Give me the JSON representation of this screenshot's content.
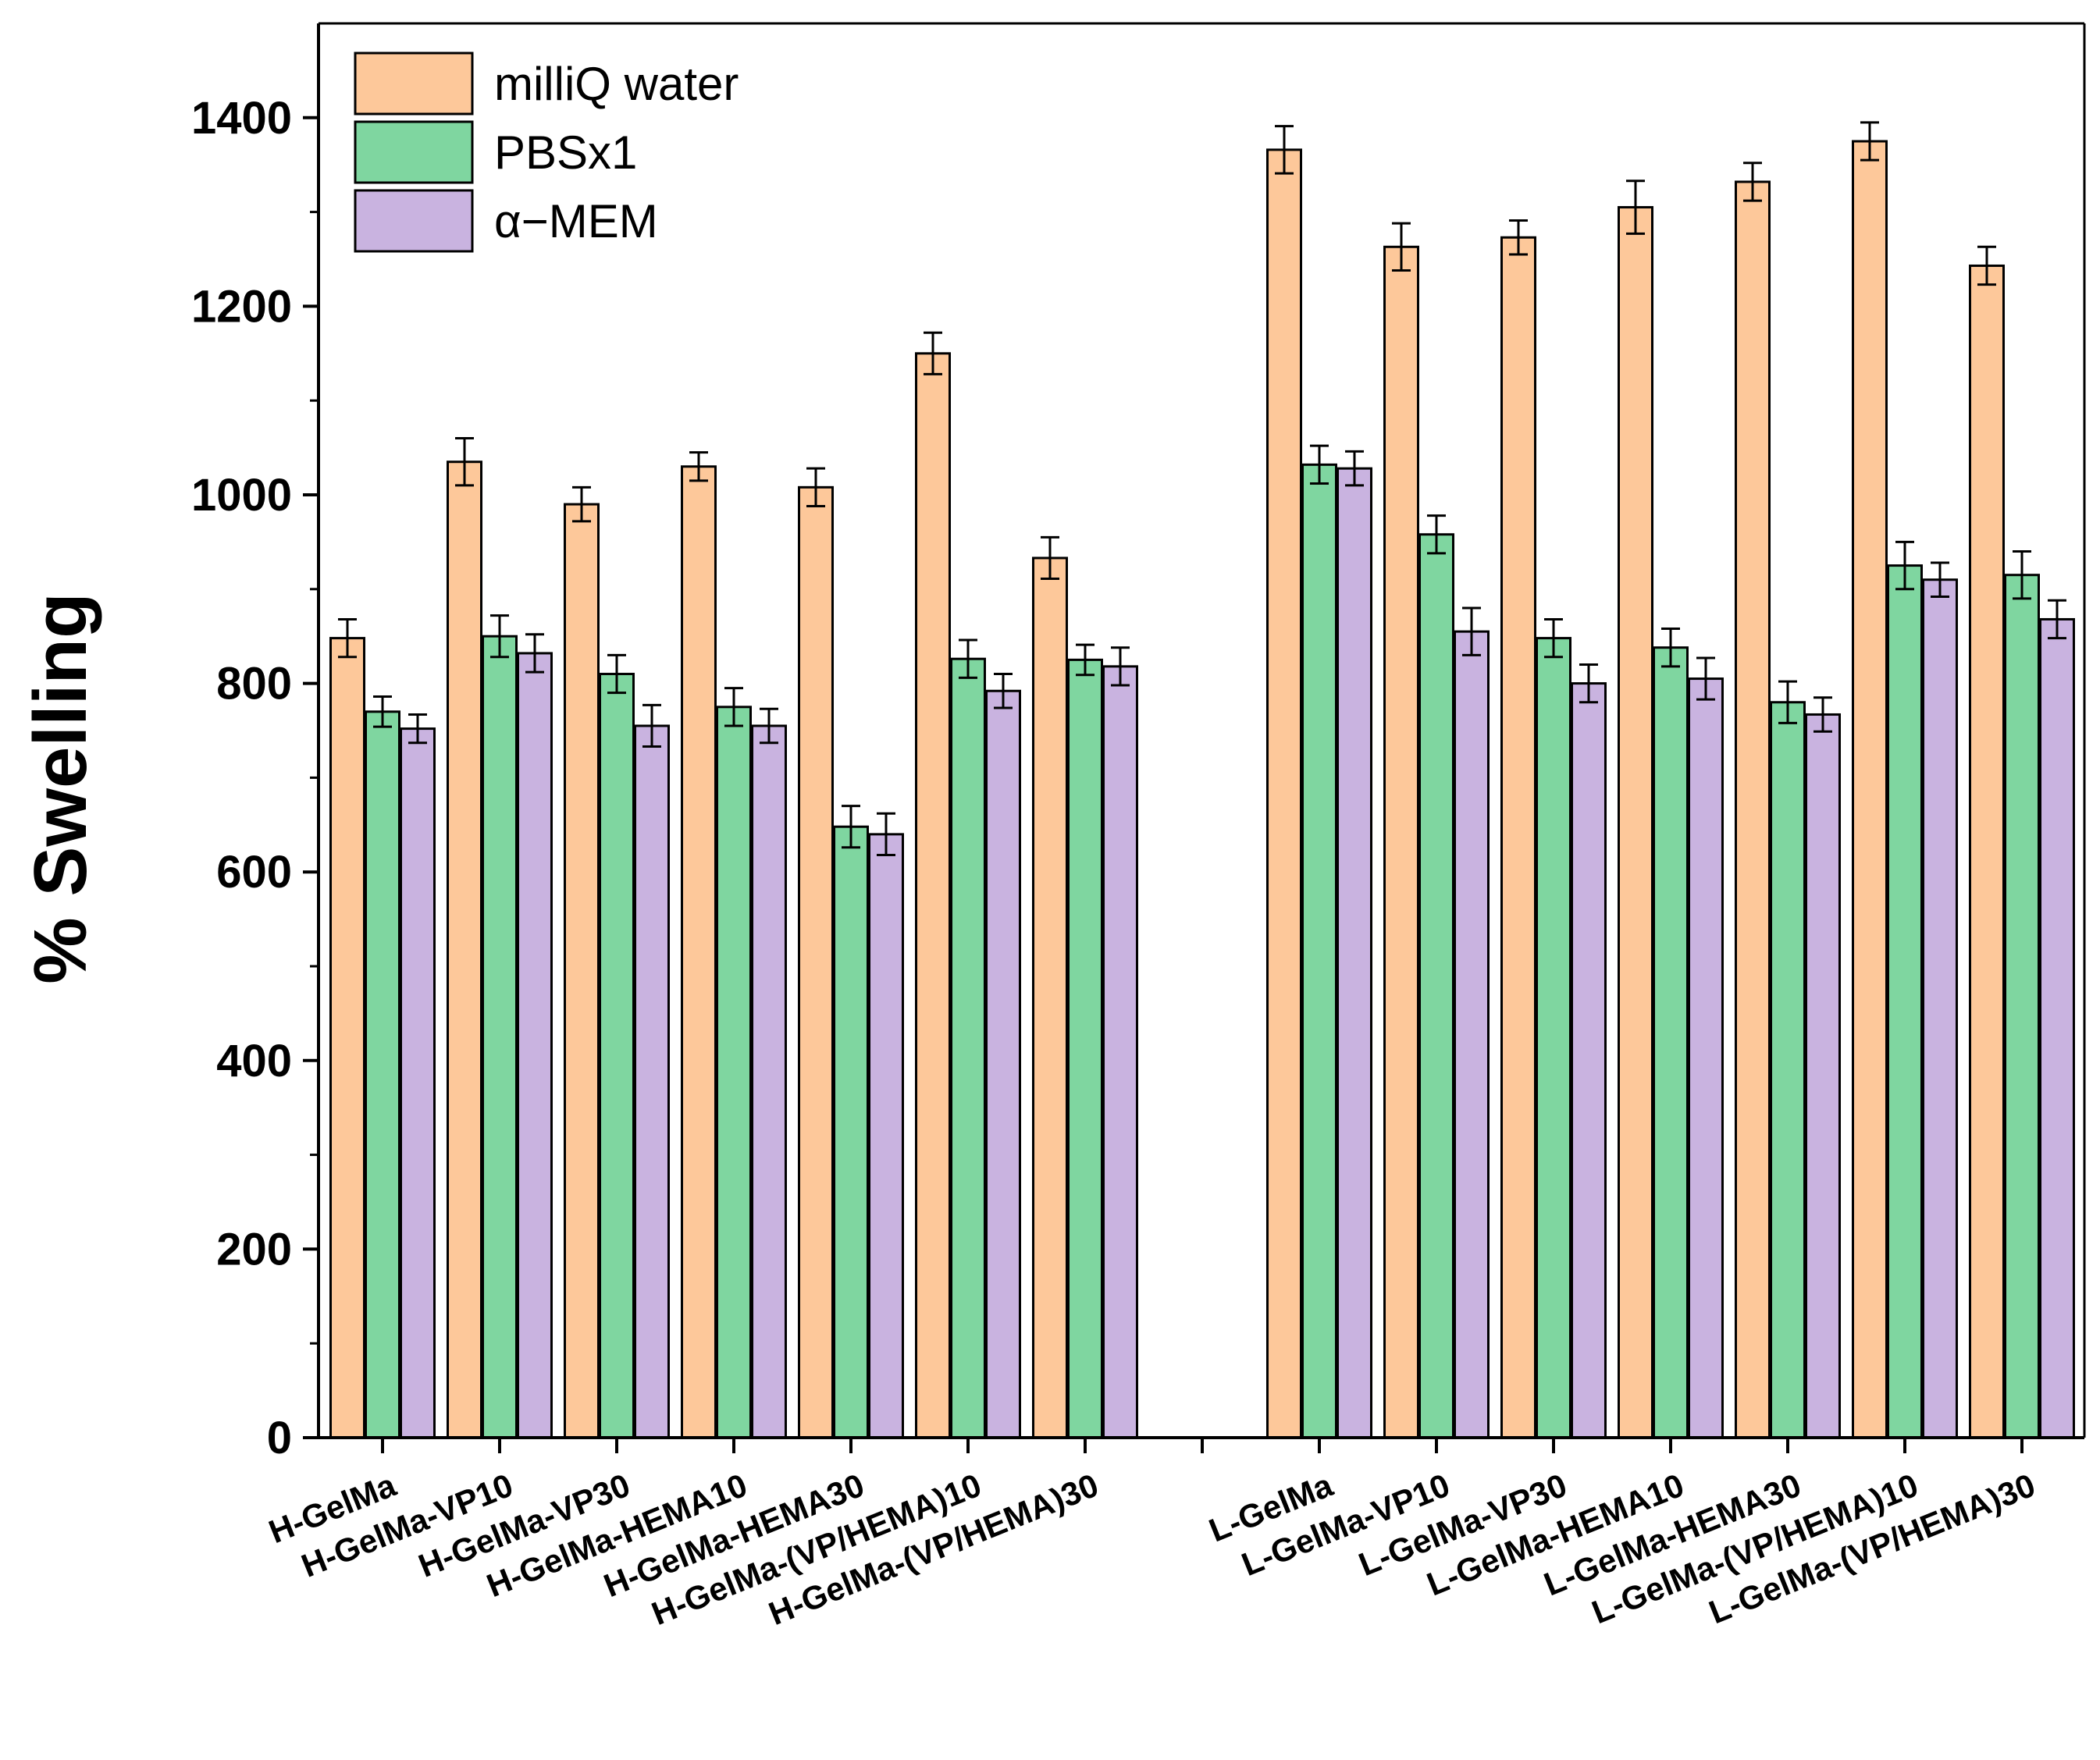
{
  "chart_data": {
    "type": "bar",
    "title": "",
    "xlabel": "",
    "ylabel": "% Swelling",
    "ylim": [
      0,
      1500
    ],
    "yticks": [
      0,
      200,
      400,
      600,
      800,
      1000,
      1200,
      1400
    ],
    "grid": false,
    "legend_position": "top-left",
    "groups": [
      {
        "categories": [
          "H-GelMa",
          "H-GelMa-VP10",
          "H-GelMa-VP30",
          "H-GelMa-HEMA10",
          "H-GelMa-HEMA30",
          "H-GelMa-(VP/HEMA)10",
          "H-GelMa-(VP/HEMA)30"
        ]
      },
      {
        "categories": [
          "L-GelMa",
          "L-GelMa-VP10",
          "L-GelMa-VP30",
          "L-GelMa-HEMA10",
          "L-GelMa-HEMA30",
          "L-GelMa-(VP/HEMA)10",
          "L-GelMa-(VP/HEMA)30"
        ]
      }
    ],
    "series": [
      {
        "name": "milliQ water",
        "color": "#fdc89a",
        "values": [
          848,
          1035,
          990,
          1030,
          1008,
          1150,
          933,
          1366,
          1263,
          1273,
          1305,
          1332,
          1375,
          1243
        ],
        "errors": [
          20,
          25,
          18,
          15,
          20,
          22,
          22,
          25,
          25,
          18,
          28,
          20,
          20,
          20
        ]
      },
      {
        "name": "PBSx1",
        "color": "#7fd6a0",
        "values": [
          770,
          850,
          810,
          775,
          648,
          826,
          825,
          1032,
          958,
          848,
          838,
          780,
          925,
          915
        ],
        "errors": [
          16,
          22,
          20,
          20,
          22,
          20,
          16,
          20,
          20,
          20,
          20,
          22,
          25,
          25
        ]
      },
      {
        "name": "α−MEM",
        "color": "#c9b3e0",
        "values": [
          752,
          832,
          755,
          755,
          640,
          792,
          818,
          1028,
          855,
          800,
          805,
          767,
          910,
          868
        ],
        "errors": [
          15,
          20,
          22,
          18,
          22,
          18,
          20,
          18,
          25,
          20,
          22,
          18,
          18,
          20
        ]
      }
    ]
  }
}
